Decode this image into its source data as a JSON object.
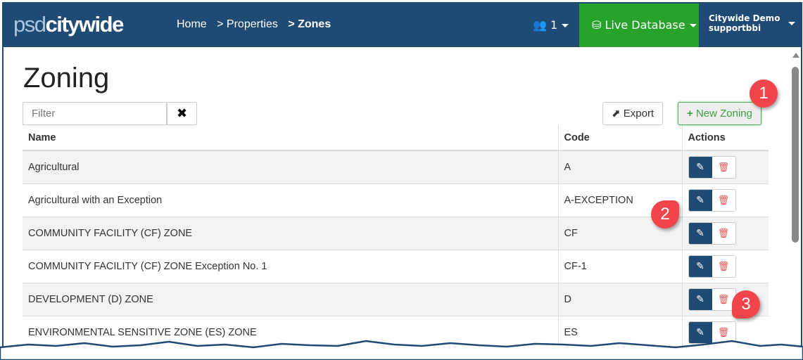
{
  "header": {
    "logo_light": "psd",
    "logo_bold": "citywide",
    "breadcrumbs": [
      "Home",
      "> Properties",
      "> Zones"
    ],
    "users_count": "1",
    "database": "Live Database",
    "account_name": "Citywide Demo",
    "account_user": "supportbbi"
  },
  "page": {
    "title": "Zoning",
    "filter_placeholder": "Filter",
    "export_label": "Export",
    "new_label": "New Zoning"
  },
  "table": {
    "columns": [
      "Name",
      "Code",
      "Actions"
    ],
    "rows": [
      {
        "name": "Agricultural",
        "code": "A"
      },
      {
        "name": "Agricultural with an Exception",
        "code": "A-EXCEPTION"
      },
      {
        "name": "COMMUNITY FACILITY (CF) ZONE",
        "code": "CF"
      },
      {
        "name": "COMMUNITY FACILITY (CF) ZONE Exception No. 1",
        "code": "CF-1"
      },
      {
        "name": "DEVELOPMENT (D) ZONE",
        "code": "D"
      },
      {
        "name": "ENVIRONMENTAL SENSITIVE ZONE (ES) ZONE",
        "code": "ES"
      }
    ]
  },
  "callouts": [
    "1",
    "2",
    "3"
  ],
  "colors": {
    "header": "#1f4a73",
    "live": "#27a22a",
    "callout": "#f2454b",
    "delete": "#e05555"
  }
}
